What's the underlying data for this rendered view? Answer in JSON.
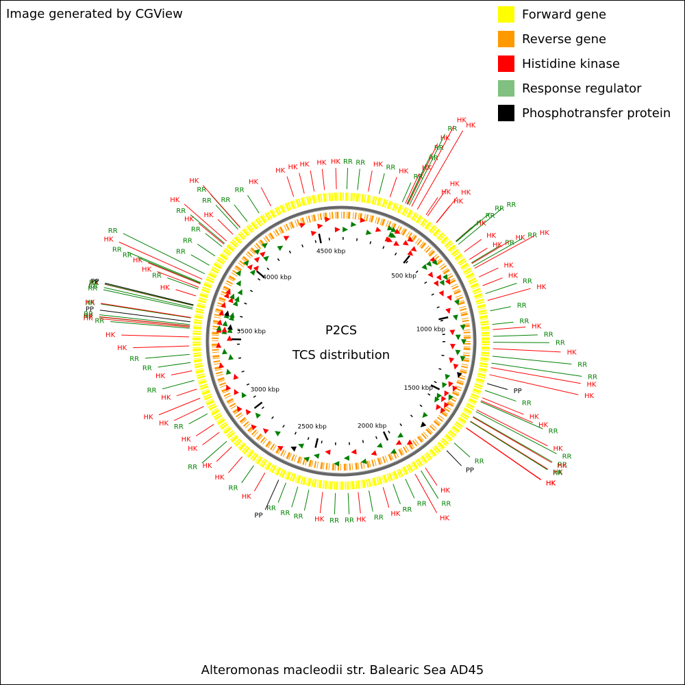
{
  "header": {
    "title": "Image generated by CGView"
  },
  "center": {
    "title": "P2CS",
    "subtitle": "TCS distribution"
  },
  "footer": {
    "title": "Alteromonas macleodii str. Balearic Sea AD45"
  },
  "position_range_kbp": [
    0,
    4650
  ],
  "ticks": [
    {
      "value": 500,
      "label": "500 kbp"
    },
    {
      "value": 1000,
      "label": "1000 kbp"
    },
    {
      "value": 1500,
      "label": "1500 kbp"
    },
    {
      "value": 2000,
      "label": "2000 kbp"
    },
    {
      "value": 2500,
      "label": "2500 kbp"
    },
    {
      "value": 3000,
      "label": "3000 kbp"
    },
    {
      "value": 3500,
      "label": "3500 kbp"
    },
    {
      "value": 4000,
      "label": "4000 kbp"
    },
    {
      "value": 4500,
      "label": "4500 kbp"
    }
  ],
  "tracks": [
    {
      "name": "Forward gene",
      "color": "#ffff00"
    },
    {
      "name": "Reverse gene",
      "color": "#ff9900"
    },
    {
      "name": "Histidine kinase",
      "color": "#ff0000",
      "mark_color": "#ff0000",
      "features": [
        {
          "label": "HK",
          "position_kbp": 133
        },
        {
          "label": "HK",
          "position_kbp": 242
        },
        {
          "label": "HK",
          "position_kbp": 323
        },
        {
          "label": "HK",
          "position_kbp": 336
        },
        {
          "label": "HK",
          "position_kbp": 357
        },
        {
          "label": "HK",
          "position_kbp": 388
        },
        {
          "label": "HK",
          "position_kbp": 438
        },
        {
          "label": "HK",
          "position_kbp": 448
        },
        {
          "label": "HK",
          "position_kbp": 501
        },
        {
          "label": "HK",
          "position_kbp": 502
        },
        {
          "label": "HK",
          "position_kbp": 632
        },
        {
          "label": "HK",
          "position_kbp": 698
        },
        {
          "label": "HK",
          "position_kbp": 743
        },
        {
          "label": "HK",
          "position_kbp": 766
        },
        {
          "label": "HK",
          "position_kbp": 793
        },
        {
          "label": "HK",
          "position_kbp": 840
        },
        {
          "label": "HK",
          "position_kbp": 886
        },
        {
          "label": "HK",
          "position_kbp": 962
        },
        {
          "label": "HK",
          "position_kbp": 1106
        },
        {
          "label": "HK",
          "position_kbp": 1199
        },
        {
          "label": "HK",
          "position_kbp": 1292
        },
        {
          "label": "HK",
          "position_kbp": 1327
        },
        {
          "label": "HK",
          "position_kbp": 1445
        },
        {
          "label": "HK",
          "position_kbp": 1460
        },
        {
          "label": "HK",
          "position_kbp": 1510
        },
        {
          "label": "HK",
          "position_kbp": 1550
        },
        {
          "label": "HK",
          "position_kbp": 1573
        },
        {
          "label": "HK",
          "position_kbp": 1611
        },
        {
          "label": "HK",
          "position_kbp": 1612
        },
        {
          "label": "HK",
          "position_kbp": 1891
        },
        {
          "label": "HK",
          "position_kbp": 1949
        },
        {
          "label": "HK",
          "position_kbp": 2118
        },
        {
          "label": "HK",
          "position_kbp": 2242
        },
        {
          "label": "HK",
          "position_kbp": 2415
        },
        {
          "label": "HK",
          "position_kbp": 2713
        },
        {
          "label": "HK",
          "position_kbp": 2849
        },
        {
          "label": "HK",
          "position_kbp": 2919
        },
        {
          "label": "HK",
          "position_kbp": 3012
        },
        {
          "label": "HK",
          "position_kbp": 3059
        },
        {
          "label": "HK",
          "position_kbp": 3159
        },
        {
          "label": "HK",
          "position_kbp": 3203
        },
        {
          "label": "HK",
          "position_kbp": 3250
        },
        {
          "label": "HK",
          "position_kbp": 3342
        },
        {
          "label": "HK",
          "position_kbp": 3464
        },
        {
          "label": "HK",
          "position_kbp": 3508
        },
        {
          "label": "HK",
          "position_kbp": 3556
        },
        {
          "label": "HK",
          "position_kbp": 3562
        },
        {
          "label": "HK",
          "position_kbp": 3603
        },
        {
          "label": "HK",
          "position_kbp": 3662
        },
        {
          "label": "HK",
          "position_kbp": 3711
        },
        {
          "label": "HK",
          "position_kbp": 3755
        },
        {
          "label": "HK",
          "position_kbp": 3773
        },
        {
          "label": "HK",
          "position_kbp": 3798
        },
        {
          "label": "HK",
          "position_kbp": 3999
        },
        {
          "label": "HK",
          "position_kbp": 4019
        },
        {
          "label": "HK",
          "position_kbp": 4064
        },
        {
          "label": "HK",
          "position_kbp": 4113
        },
        {
          "label": "HK",
          "position_kbp": 4295
        },
        {
          "label": "HK",
          "position_kbp": 4415
        },
        {
          "label": "HK",
          "position_kbp": 4469
        },
        {
          "label": "HK",
          "position_kbp": 4518
        },
        {
          "label": "HK",
          "position_kbp": 4569
        },
        {
          "label": "HK",
          "position_kbp": 4627
        }
      ]
    },
    {
      "name": "Response regulator",
      "color": "#80c080",
      "mark_color": "#008000",
      "features": [
        {
          "label": "RR",
          "position_kbp": 28
        },
        {
          "label": "RR",
          "position_kbp": 80
        },
        {
          "label": "RR",
          "position_kbp": 187
        },
        {
          "label": "RR",
          "position_kbp": 307
        },
        {
          "label": "RR",
          "position_kbp": 331
        },
        {
          "label": "RR",
          "position_kbp": 332
        },
        {
          "label": "RR",
          "position_kbp": 344
        },
        {
          "label": "RR",
          "position_kbp": 633
        },
        {
          "label": "RR",
          "position_kbp": 636
        },
        {
          "label": "RR",
          "position_kbp": 652
        },
        {
          "label": "RR",
          "position_kbp": 762
        },
        {
          "label": "RR",
          "position_kbp": 781
        },
        {
          "label": "RR",
          "position_kbp": 927
        },
        {
          "label": "RR",
          "position_kbp": 1014
        },
        {
          "label": "RR",
          "position_kbp": 1081
        },
        {
          "label": "RR",
          "position_kbp": 1139
        },
        {
          "label": "RR",
          "position_kbp": 1168
        },
        {
          "label": "RR",
          "position_kbp": 1236
        },
        {
          "label": "RR",
          "position_kbp": 1270
        },
        {
          "label": "RR",
          "position_kbp": 1407
        },
        {
          "label": "RR",
          "position_kbp": 1466
        },
        {
          "label": "RR",
          "position_kbp": 1519
        },
        {
          "label": "RR",
          "position_kbp": 1547
        },
        {
          "label": "RR",
          "position_kbp": 1575
        },
        {
          "label": "RR",
          "position_kbp": 1705
        },
        {
          "label": "RR",
          "position_kbp": 1916
        },
        {
          "label": "RR",
          "position_kbp": 2002
        },
        {
          "label": "RR",
          "position_kbp": 2067
        },
        {
          "label": "RR",
          "position_kbp": 2189
        },
        {
          "label": "RR",
          "position_kbp": 2291
        },
        {
          "label": "RR",
          "position_kbp": 2353
        },
        {
          "label": "RR",
          "position_kbp": 2483
        },
        {
          "label": "RR",
          "position_kbp": 2539
        },
        {
          "label": "RR",
          "position_kbp": 2600
        },
        {
          "label": "RR",
          "position_kbp": 2778
        },
        {
          "label": "RR",
          "position_kbp": 2955
        },
        {
          "label": "RR",
          "position_kbp": 3119
        },
        {
          "label": "RR",
          "position_kbp": 3294
        },
        {
          "label": "RR",
          "position_kbp": 3383
        },
        {
          "label": "RR",
          "position_kbp": 3423
        },
        {
          "label": "RR",
          "position_kbp": 3550
        },
        {
          "label": "RR",
          "position_kbp": 3561
        },
        {
          "label": "RR",
          "position_kbp": 3568
        },
        {
          "label": "RR",
          "position_kbp": 3601
        },
        {
          "label": "RR",
          "position_kbp": 3645
        },
        {
          "label": "RR",
          "position_kbp": 3652
        },
        {
          "label": "RR",
          "position_kbp": 3663
        },
        {
          "label": "RR",
          "position_kbp": 3746
        },
        {
          "label": "RR",
          "position_kbp": 3776
        },
        {
          "label": "RR",
          "position_kbp": 3780
        },
        {
          "label": "RR",
          "position_kbp": 3827
        },
        {
          "label": "RR",
          "position_kbp": 3874
        },
        {
          "label": "RR",
          "position_kbp": 3927
        },
        {
          "label": "RR",
          "position_kbp": 3984
        },
        {
          "label": "RR",
          "position_kbp": 4004
        },
        {
          "label": "RR",
          "position_kbp": 4099
        },
        {
          "label": "RR",
          "position_kbp": 4112
        },
        {
          "label": "RR",
          "position_kbp": 4158
        },
        {
          "label": "RR",
          "position_kbp": 4228
        }
      ]
    },
    {
      "name": "Phosphotransfer protein",
      "color": "#000000",
      "mark_color": "#000000",
      "features": [
        {
          "label": "PP",
          "position_kbp": 1372
        },
        {
          "label": "PP",
          "position_kbp": 1757
        },
        {
          "label": "PP",
          "position_kbp": 2638
        },
        {
          "label": "PP",
          "position_kbp": 3582
        },
        {
          "label": "PP",
          "position_kbp": 3666
        }
      ]
    }
  ]
}
